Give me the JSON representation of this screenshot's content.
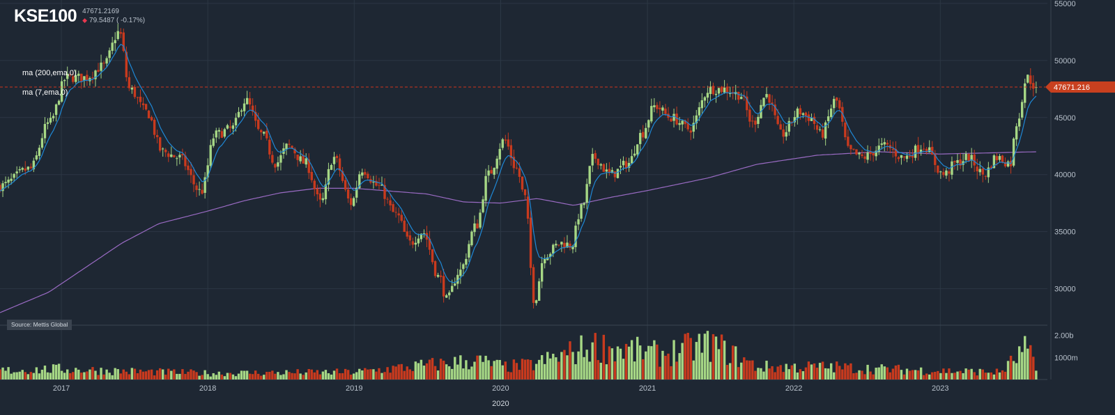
{
  "header": {
    "ticker": "KSE100",
    "last": "47671.2169",
    "change": "79.5487 ( -0.17%)",
    "change_icon": "down-arrow-icon"
  },
  "indicators": {
    "ma200": "ma (200,ema,0)",
    "ma7": "ma (7,ema,0)"
  },
  "source": "Source: Mettis Global",
  "colors": {
    "background": "#1e2733",
    "grid": "#2c3744",
    "up": "#a6d785",
    "down": "#c83a1e",
    "ma7": "#1e88d6",
    "ma200": "#9a6bc4",
    "price_line": "#d0341e",
    "price_label_bg": "#c8401f"
  },
  "chart_data": {
    "type": "candlestick",
    "interval": "weekly",
    "title": "KSE100",
    "price_axis_ticks": [
      55000,
      50000,
      45000,
      40000,
      35000,
      30000
    ],
    "price_range": [
      26800,
      55300
    ],
    "volume_axis_ticks": [
      "2.00b",
      "1000m"
    ],
    "volume_range_m": [
      0,
      2300
    ],
    "x_axis_labels": [
      "2017",
      "2018",
      "2019",
      "2020",
      "2021",
      "2022",
      "2023"
    ],
    "x_axis_major_label": "2020",
    "time_range": [
      "2016-08",
      "2023-08"
    ],
    "last_price_label": "47671.216",
    "grid": true,
    "close_anchors": [
      [
        "2016-08-01",
        39000
      ],
      [
        "2016-10-15",
        40500
      ],
      [
        "2016-12-01",
        44500
      ],
      [
        "2017-01-15",
        48500
      ],
      [
        "2017-03-01",
        48500
      ],
      [
        "2017-04-15",
        49500
      ],
      [
        "2017-05-25",
        52500
      ],
      [
        "2017-06-20",
        47500
      ],
      [
        "2017-08-01",
        45500
      ],
      [
        "2017-09-10",
        42000
      ],
      [
        "2017-10-20",
        41500
      ],
      [
        "2017-12-15",
        38500
      ],
      [
        "2018-01-20",
        43500
      ],
      [
        "2018-03-01",
        44000
      ],
      [
        "2018-04-05",
        46500
      ],
      [
        "2018-05-15",
        43500
      ],
      [
        "2018-06-20",
        41000
      ],
      [
        "2018-07-20",
        42500
      ],
      [
        "2018-09-01",
        41000
      ],
      [
        "2018-10-10",
        37500
      ],
      [
        "2018-11-10",
        41500
      ],
      [
        "2018-12-25",
        37500
      ],
      [
        "2019-01-20",
        40500
      ],
      [
        "2019-03-01",
        39000
      ],
      [
        "2019-04-15",
        36500
      ],
      [
        "2019-05-20",
        34000
      ],
      [
        "2019-06-20",
        35000
      ],
      [
        "2019-08-01",
        31000
      ],
      [
        "2019-08-20",
        29000
      ],
      [
        "2019-09-20",
        31500
      ],
      [
        "2019-11-01",
        35500
      ],
      [
        "2019-12-01",
        40000
      ],
      [
        "2020-01-10",
        43000
      ],
      [
        "2020-02-10",
        40500
      ],
      [
        "2020-03-01",
        38000
      ],
      [
        "2020-03-25",
        29000
      ],
      [
        "2020-04-20",
        33000
      ],
      [
        "2020-06-01",
        34000
      ],
      [
        "2020-06-25",
        33800
      ],
      [
        "2020-07-20",
        37000
      ],
      [
        "2020-08-20",
        41500
      ],
      [
        "2020-10-01",
        40000
      ],
      [
        "2020-11-15",
        41000
      ],
      [
        "2020-12-15",
        43500
      ],
      [
        "2021-01-20",
        46000
      ],
      [
        "2021-03-01",
        45000
      ],
      [
        "2021-04-15",
        44000
      ],
      [
        "2021-06-05",
        47500
      ],
      [
        "2021-07-10",
        47500
      ],
      [
        "2021-08-20",
        47000
      ],
      [
        "2021-09-20",
        44500
      ],
      [
        "2021-10-25",
        47000
      ],
      [
        "2021-12-01",
        43500
      ],
      [
        "2022-01-15",
        45500
      ],
      [
        "2022-02-10",
        45000
      ],
      [
        "2022-03-10",
        43500
      ],
      [
        "2022-04-15",
        46500
      ],
      [
        "2022-05-20",
        42000
      ],
      [
        "2022-06-20",
        41500
      ],
      [
        "2022-08-15",
        42500
      ],
      [
        "2022-10-01",
        41500
      ],
      [
        "2022-11-20",
        42500
      ],
      [
        "2023-01-10",
        40000
      ],
      [
        "2023-02-10",
        41000
      ],
      [
        "2023-03-10",
        41500
      ],
      [
        "2023-04-20",
        40000
      ],
      [
        "2023-05-20",
        41500
      ],
      [
        "2023-06-25",
        41000
      ],
      [
        "2023-07-10",
        44500
      ],
      [
        "2023-08-05",
        48500
      ],
      [
        "2023-08-28",
        47671
      ]
    ],
    "ma7_last": 46900,
    "ma200_anchors": [
      [
        "2016-08-01",
        27900
      ],
      [
        "2016-12-01",
        29700
      ],
      [
        "2017-06-01",
        34000
      ],
      [
        "2017-09-01",
        35700
      ],
      [
        "2018-01-01",
        36800
      ],
      [
        "2018-04-01",
        37700
      ],
      [
        "2018-07-01",
        38400
      ],
      [
        "2018-10-01",
        38800
      ],
      [
        "2019-01-01",
        38800
      ],
      [
        "2019-07-01",
        38300
      ],
      [
        "2019-10-01",
        37600
      ],
      [
        "2020-01-01",
        37500
      ],
      [
        "2020-04-01",
        37900
      ],
      [
        "2020-07-01",
        37300
      ],
      [
        "2020-10-01",
        38000
      ],
      [
        "2021-01-01",
        38600
      ],
      [
        "2021-06-01",
        39700
      ],
      [
        "2021-10-01",
        40900
      ],
      [
        "2022-03-01",
        41700
      ],
      [
        "2022-08-01",
        42000
      ],
      [
        "2023-01-01",
        41800
      ],
      [
        "2023-08-30",
        42000
      ]
    ]
  }
}
